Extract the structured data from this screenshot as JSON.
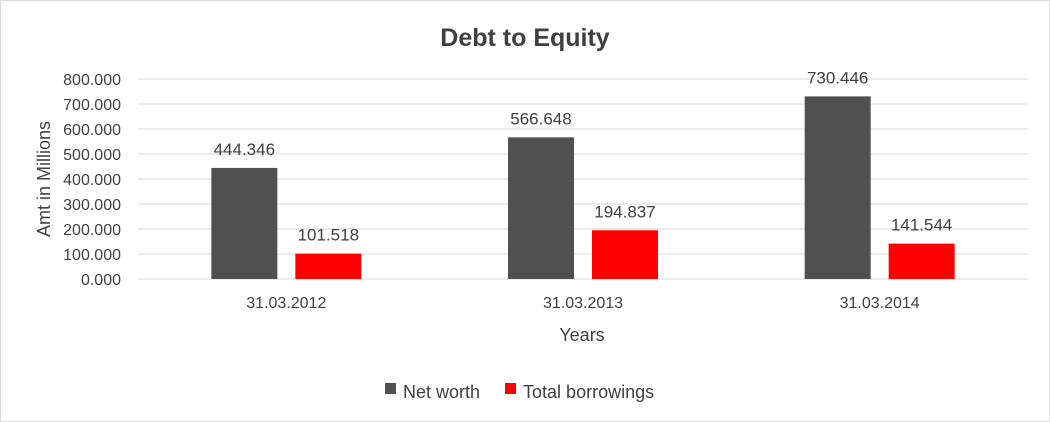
{
  "chart_data": {
    "type": "bar",
    "title": "Debt to Equity",
    "xlabel": "Years",
    "ylabel": "Amt in Millions",
    "categories": [
      "31.03.2012",
      "31.03.2013",
      "31.03.2014"
    ],
    "series": [
      {
        "name": "Net worth",
        "color": "#505050",
        "values": [
          444.346,
          566.648,
          730.446
        ],
        "labels": [
          "444.346",
          "566.648",
          "730.446"
        ]
      },
      {
        "name": "Total borrowings",
        "color": "#ff0000",
        "values": [
          101.518,
          194.837,
          141.544
        ],
        "labels": [
          "101.518",
          "194.837",
          "141.544"
        ]
      }
    ],
    "ylim": [
      0,
      800
    ],
    "yticks": [
      "0.000",
      "100.000",
      "200.000",
      "300.000",
      "400.000",
      "500.000",
      "600.000",
      "700.000",
      "800.000"
    ],
    "grid": true,
    "legend_position": "bottom"
  }
}
